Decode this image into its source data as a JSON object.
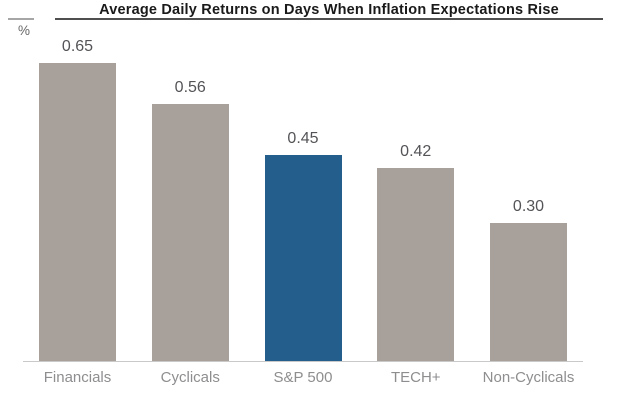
{
  "header": {
    "title": "Average Daily Returns on Days When Inflation Expectations Rise",
    "y_axis_unit": "%"
  },
  "chart_data": {
    "type": "bar",
    "title": "Average Daily Returns on Days When Inflation Expectations Rise",
    "xlabel": "",
    "ylabel": "%",
    "categories": [
      "Financials",
      "Cyclicals",
      "S&P 500",
      "TECH+",
      "Non-Cyclicals"
    ],
    "values": [
      0.65,
      0.56,
      0.45,
      0.42,
      0.3
    ],
    "value_labels": [
      "0.65",
      "0.56",
      "0.45",
      "0.42",
      "0.30"
    ],
    "highlight_index": 2,
    "colors": {
      "bar_default": "#a8a19b",
      "bar_highlight": "#235e8c",
      "title_text": "#1a1a1a",
      "value_text": "#545458",
      "category_text": "#8e8e90",
      "axis_line": "#c9c9c9",
      "title_rule": "#4f4f4f"
    },
    "ylim": [
      0,
      0.7
    ],
    "grid": false,
    "legend": false,
    "data_labels": true
  }
}
